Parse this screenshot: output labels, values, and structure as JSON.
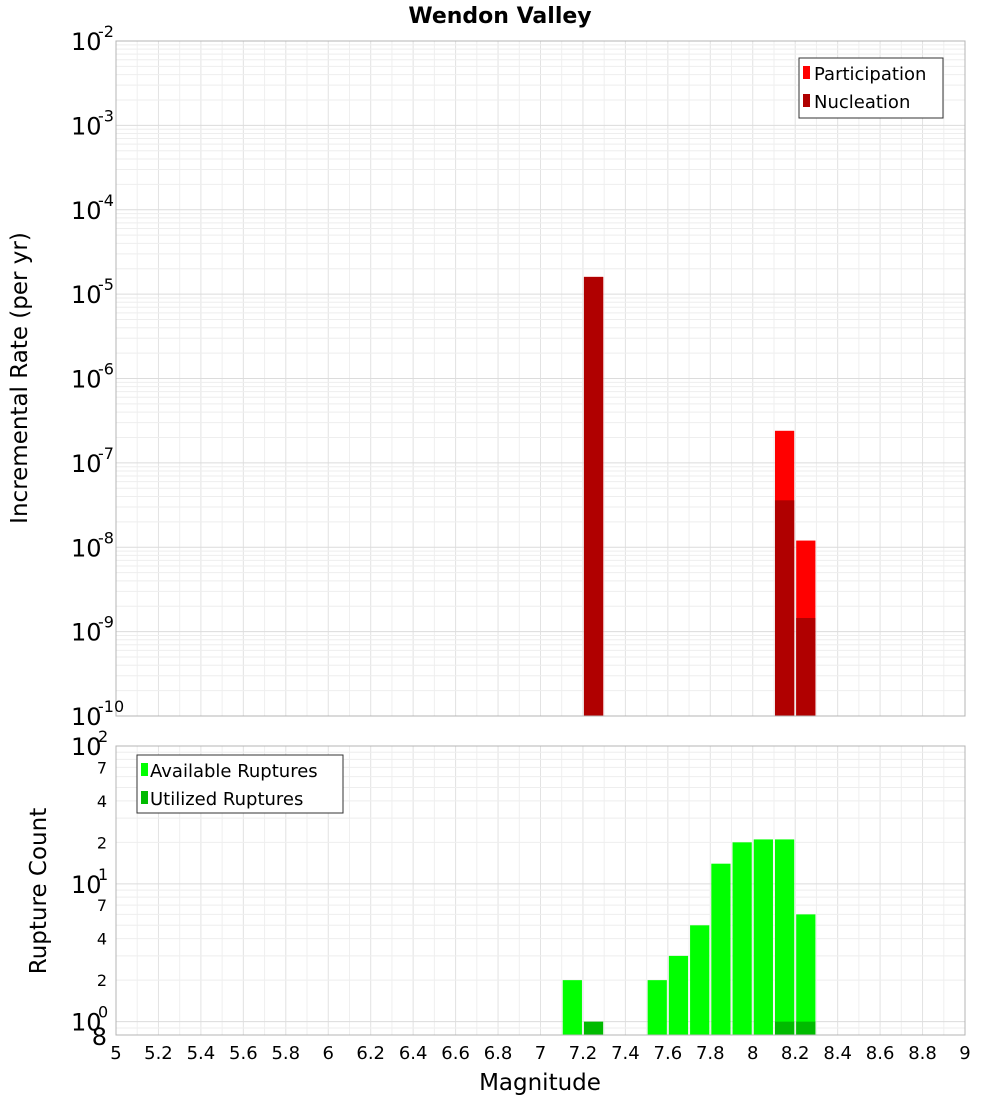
{
  "chart_data": [
    {
      "type": "bar",
      "title": "Wendon Valley",
      "ylabel": "Incremental Rate (per yr)",
      "y_scale": "log",
      "ylim": [
        1e-10,
        0.01
      ],
      "xlim": [
        5,
        9
      ],
      "y_major_ticks": [
        {
          "base": "10",
          "exp": "-10"
        },
        {
          "base": "10",
          "exp": "-9"
        },
        {
          "base": "10",
          "exp": "-8"
        },
        {
          "base": "10",
          "exp": "-7"
        },
        {
          "base": "10",
          "exp": "-6"
        },
        {
          "base": "10",
          "exp": "-5"
        },
        {
          "base": "10",
          "exp": "-4"
        },
        {
          "base": "10",
          "exp": "-3"
        },
        {
          "base": "10",
          "exp": "-2"
        }
      ],
      "grid": true,
      "legend": {
        "position": "top-right",
        "entries": [
          "Participation",
          "Nucleation"
        ]
      },
      "bar_width": 0.1,
      "series": [
        {
          "name": "Participation",
          "color": "#ff0000",
          "x": [
            7.25,
            8.15,
            8.25
          ],
          "values": [
            1.6e-05,
            2.4e-07,
            1.2e-08
          ]
        },
        {
          "name": "Nucleation",
          "color": "#b00000",
          "x": [
            7.25,
            8.15,
            8.25
          ],
          "values": [
            1.6e-05,
            3.6e-08,
            1.45e-09
          ]
        }
      ]
    },
    {
      "type": "bar",
      "ylabel": "Rupture Count",
      "xlabel": "Magnitude",
      "y_scale": "log",
      "ylim": [
        0.8,
        100
      ],
      "xlim": [
        5,
        9
      ],
      "x_ticks": [
        "5",
        "5.2",
        "5.4",
        "5.6",
        "5.8",
        "6",
        "6.2",
        "6.4",
        "6.6",
        "6.8",
        "7",
        "7.2",
        "7.4",
        "7.6",
        "7.8",
        "8",
        "8.2",
        "8.4",
        "8.6",
        "8.8",
        "9"
      ],
      "y_major_ticks": [
        {
          "base": "10",
          "exp": "0"
        },
        {
          "base": "10",
          "exp": "1"
        },
        {
          "base": "10",
          "exp": "2"
        }
      ],
      "y_minor_ticks": [
        {
          "value": 0.8,
          "label": "8"
        },
        {
          "value": 2,
          "label": "2"
        },
        {
          "value": 4,
          "label": "4"
        },
        {
          "value": 7,
          "label": "7"
        },
        {
          "value": 20,
          "label": "2"
        },
        {
          "value": 40,
          "label": "4"
        },
        {
          "value": 70,
          "label": "7"
        }
      ],
      "grid": true,
      "legend": {
        "position": "top-left",
        "entries": [
          "Available Ruptures",
          "Utilized Ruptures"
        ]
      },
      "bar_width": 0.1,
      "series": [
        {
          "name": "Available Ruptures",
          "color": "#00ff00",
          "x": [
            7.15,
            7.55,
            7.65,
            7.75,
            7.85,
            7.95,
            8.05,
            8.15,
            8.25
          ],
          "values": [
            2,
            2,
            3,
            5,
            14,
            20,
            21,
            21,
            6
          ]
        },
        {
          "name": "Utilized Ruptures",
          "color": "#00bb00",
          "x": [
            7.25,
            8.15,
            8.25
          ],
          "values": [
            1,
            1,
            1
          ]
        }
      ]
    }
  ]
}
